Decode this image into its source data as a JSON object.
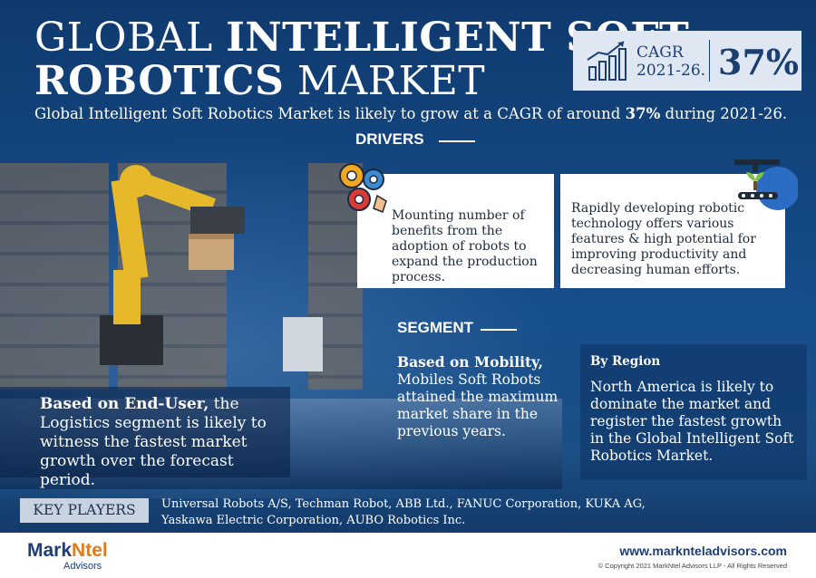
{
  "header": {
    "title_light_1": "GLOBAL",
    "title_bold_1": "INTELLIGENT SOFT",
    "title_bold_2": "ROBOTICS",
    "title_light_2": "MARKET"
  },
  "cagr": {
    "label": "CAGR",
    "period": "2021-26.",
    "value": "37%"
  },
  "subtitle": {
    "before": "Global Intelligent Soft Robotics Market  is likely to grow at a CAGR of around ",
    "highlight": "37%",
    "after": " during 2021-26."
  },
  "drivers": {
    "heading": "DRIVERS",
    "items": [
      {
        "text": "Mounting number of benefits from the adoption of robots to expand the production process.",
        "icon": "gears-icon"
      },
      {
        "text": "Rapidly developing robotic technology offers various features & high potential for improving productivity and decreasing human efforts.",
        "icon": "plant-conveyor-icon"
      }
    ]
  },
  "segment": {
    "heading": "SEGMENT",
    "end_user_bold": "Based on End-User,",
    "end_user_rest": " the Logistics segment is likely to witness the fastest market growth over the forecast period.",
    "mobility_bold": "Based on Mobility,",
    "mobility_rest": " Mobiles Soft Robots attained the maximum market share in the previous years.",
    "region_label": "By Region",
    "region_text": "North America is likely to dominate the market and register the fastest growth in the Global Intelligent Soft Robotics Market."
  },
  "key_players": {
    "label": "KEY PLAYERS",
    "text": "Universal Robots A/S, Techman Robot, ABB Ltd., FANUC Corporation, KUKA AG, Yaskawa Electric Corporation, AUBO Robotics Inc."
  },
  "footer": {
    "logo_main": "Mark",
    "logo_accent": "Ntel",
    "logo_sub": "Advisors",
    "website": "www.marknteladvisors.com",
    "copyright": "© Copyright 2021 MarkNtel Advisors LLP - All Rights Reserved"
  },
  "colors": {
    "background": "#13457f",
    "cagr_box": "#dfe7f2",
    "accent_orange": "#e37b1c",
    "navy": "#1c3f72"
  }
}
